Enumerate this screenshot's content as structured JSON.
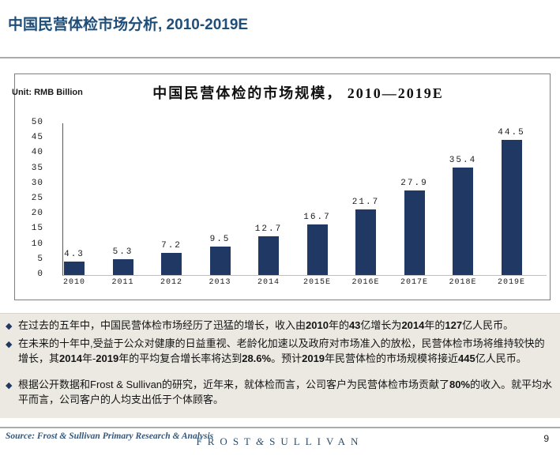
{
  "page": {
    "title": "中国民营体检市场分析, 2010-2019E",
    "page_number": "9"
  },
  "chart_panel": {
    "unit_label": "Unit: RMB Billion"
  },
  "chart_data": {
    "type": "bar",
    "title": "中国民营体检的市场规模， 2010—2019E",
    "unit": "RMB Billion",
    "categories": [
      "2010",
      "2011",
      "2012",
      "2013",
      "2014",
      "2015E",
      "2016E",
      "2017E",
      "2018E",
      "2019E"
    ],
    "values": [
      4.3,
      5.3,
      7.2,
      9.5,
      12.7,
      16.7,
      21.7,
      27.9,
      35.4,
      44.5
    ],
    "value_labels": [
      "4.3",
      "5.3",
      "7.2",
      "9.5",
      "12.7",
      "16.7",
      "21.7",
      "27.9",
      "35.4",
      "44.5"
    ],
    "ylim": [
      0,
      50
    ],
    "ytick_step": 5,
    "grid": false,
    "legend": "none",
    "bar_color": "#1F3864"
  },
  "bullets": [
    {
      "segments": [
        {
          "t": "在过去的五年中，中国民营体检市场经历了迅猛的增长，收入由",
          "b": false
        },
        {
          "t": "2010",
          "b": true
        },
        {
          "t": "年的",
          "b": false
        },
        {
          "t": "43",
          "b": true
        },
        {
          "t": "亿增长为",
          "b": false
        },
        {
          "t": "2014",
          "b": true
        },
        {
          "t": "年的",
          "b": false
        },
        {
          "t": "127",
          "b": true
        },
        {
          "t": "亿人民币。",
          "b": false
        }
      ]
    },
    {
      "segments": [
        {
          "t": "在未来的十年中,受益于公众对健康的日益重视、老龄化加速以及政府对市场准入的放松，民营体检市场将维持较快的增长，其",
          "b": false
        },
        {
          "t": "2014",
          "b": true
        },
        {
          "t": "年-",
          "b": false
        },
        {
          "t": "2019",
          "b": true
        },
        {
          "t": "年的平均复合增长率将达到",
          "b": false
        },
        {
          "t": "28.6%",
          "b": true
        },
        {
          "t": "。预计",
          "b": false
        },
        {
          "t": "2019",
          "b": true
        },
        {
          "t": "年民营体检的市场规模将接近",
          "b": false
        },
        {
          "t": "445",
          "b": true
        },
        {
          "t": "亿人民币。",
          "b": false
        }
      ]
    },
    {
      "segments": [
        {
          "t": "根据公开数据和Frost & Sullivan的研究，近年来，就体检而言，公司客户为民营体检市场贡献了",
          "b": false
        },
        {
          "t": "80%",
          "b": true
        },
        {
          "t": "的收入。就平均水平而言，公司客户的人均支出低于个体顾客。",
          "b": false
        }
      ]
    }
  ],
  "footer": {
    "source": "Source: Frost & Sullivan Primary Research & Analysis",
    "logo": {
      "frost": "FROST",
      "amp": "&",
      "sullivan": "SULLIVAN"
    }
  }
}
